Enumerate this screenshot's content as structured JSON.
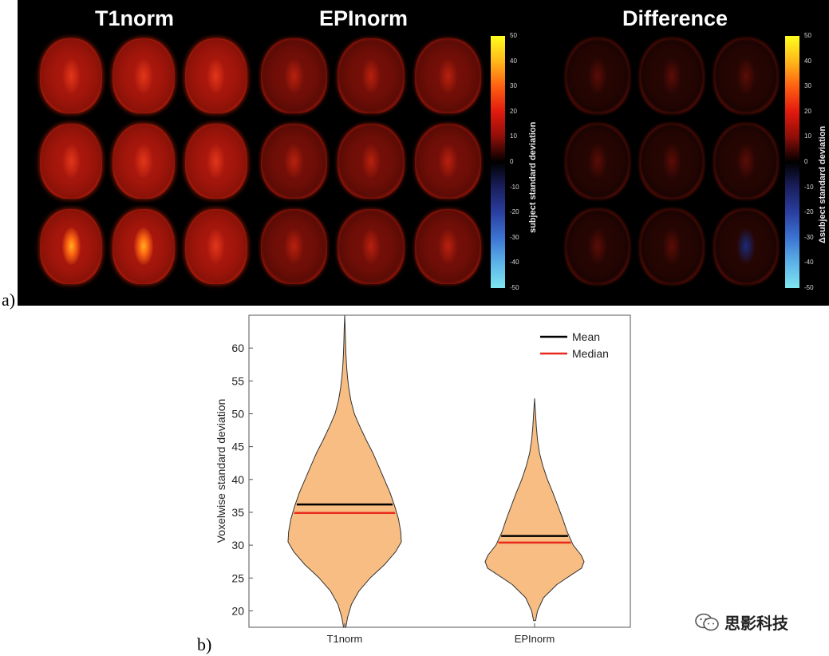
{
  "panel_a": {
    "label": "a)",
    "titles": [
      "T1norm",
      "EPInorm",
      "Difference"
    ],
    "colorbar1": {
      "label": "subject standard deviation",
      "ticks": [
        50,
        40,
        30,
        20,
        10,
        0,
        -10,
        -20,
        -30,
        -40,
        -50
      ]
    },
    "colorbar2": {
      "label": "Δsubject standard deviation",
      "ticks": [
        50,
        40,
        30,
        20,
        10,
        0,
        -10,
        -20,
        -30,
        -40,
        -50
      ]
    }
  },
  "panel_b": {
    "label": "b)"
  },
  "chart_data": {
    "type": "violin",
    "categories": [
      "T1norm",
      "EPInorm"
    ],
    "ylabel": "Voxelwise standard deviation",
    "xlabel": "",
    "ylim": [
      17.5,
      65
    ],
    "yticks": [
      20,
      25,
      30,
      35,
      40,
      45,
      50,
      55,
      60
    ],
    "legend": {
      "position": "top-right",
      "entries": [
        {
          "name": "Mean",
          "color": "#000000"
        },
        {
          "name": "Median",
          "color": "#e8291c"
        }
      ]
    },
    "series": [
      {
        "category": "T1norm",
        "min": 17.5,
        "max": 65,
        "mean": 36.2,
        "median": 34.9,
        "density": [
          [
            17.5,
            0.02
          ],
          [
            19,
            0.05
          ],
          [
            21,
            0.12
          ],
          [
            23,
            0.25
          ],
          [
            25,
            0.45
          ],
          [
            27,
            0.7
          ],
          [
            29,
            0.9
          ],
          [
            30.5,
            1.0
          ],
          [
            32,
            0.99
          ],
          [
            34,
            0.95
          ],
          [
            36,
            0.88
          ],
          [
            38,
            0.8
          ],
          [
            40,
            0.7
          ],
          [
            42,
            0.6
          ],
          [
            44,
            0.5
          ],
          [
            46,
            0.38
          ],
          [
            48,
            0.27
          ],
          [
            50,
            0.17
          ],
          [
            52,
            0.11
          ],
          [
            54,
            0.07
          ],
          [
            55.5,
            0.05
          ],
          [
            57,
            0.035
          ],
          [
            59,
            0.022
          ],
          [
            61,
            0.014
          ],
          [
            63,
            0.008
          ],
          [
            65,
            0.0
          ]
        ]
      },
      {
        "category": "EPInorm",
        "min": 18.5,
        "max": 52.3,
        "mean": 31.4,
        "median": 30.4,
        "density": [
          [
            18.5,
            0.02
          ],
          [
            20,
            0.06
          ],
          [
            22,
            0.18
          ],
          [
            24,
            0.45
          ],
          [
            25.5,
            0.75
          ],
          [
            26.5,
            0.95
          ],
          [
            27.5,
            1.0
          ],
          [
            28.5,
            0.94
          ],
          [
            30,
            0.78
          ],
          [
            32,
            0.66
          ],
          [
            34,
            0.57
          ],
          [
            36,
            0.47
          ],
          [
            38,
            0.37
          ],
          [
            40,
            0.26
          ],
          [
            42,
            0.17
          ],
          [
            44,
            0.1
          ],
          [
            46,
            0.06
          ],
          [
            48,
            0.035
          ],
          [
            50,
            0.02
          ],
          [
            52.3,
            0.0
          ]
        ]
      }
    ],
    "fill_color": "#f8bd82",
    "stroke_color": "#333333"
  },
  "watermark": {
    "text": "思影科技"
  }
}
